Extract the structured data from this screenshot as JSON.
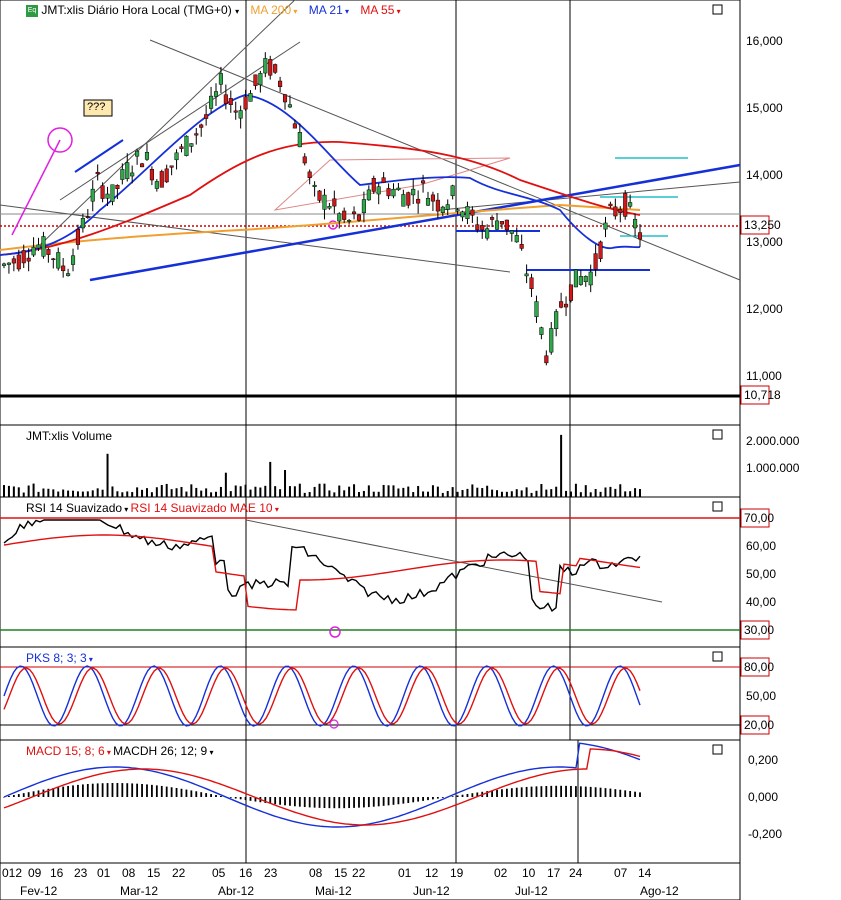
{
  "price_panel": {
    "title": "JMT:xlis Diário Hora Local (TMG+0)",
    "ma200_label": "MA 200",
    "ma21_label": "MA 21",
    "ma55_label": "MA 55",
    "annotation": "???",
    "last_price": "13,250",
    "hline_value": "10,718",
    "y_ticks": [
      "16,000",
      "15,000",
      "14,000",
      "13,000",
      "12,000",
      "11,000"
    ]
  },
  "volume_panel": {
    "title": "JMT:xlis Volume",
    "y_ticks": [
      "2.000.000",
      "1.000.000"
    ]
  },
  "rsi_panel": {
    "title": "RSI 14 Suavizado",
    "title2": "RSI 14 Suavizado MAE 10",
    "y_ticks": [
      "70,00",
      "60,00",
      "50,00",
      "40,00",
      "30,00"
    ]
  },
  "pks_panel": {
    "title": "PKS 8; 3; 3",
    "y_ticks": [
      "80,00",
      "50,00",
      "20,00"
    ]
  },
  "macd_panel": {
    "title": "MACD 15; 8; 6",
    "title2": "MACDH 26; 12; 9",
    "y_ticks": [
      "0,200",
      "0,000",
      "-0,200"
    ]
  },
  "x_axis": {
    "days": [
      "012",
      "09",
      "16",
      "23",
      "01",
      "08",
      "15",
      "22",
      "05",
      "16",
      "23",
      "08",
      "15",
      "22",
      "01",
      "12",
      "19",
      "02",
      "10",
      "17",
      "24",
      "07",
      "14"
    ],
    "months": [
      "Fev-12",
      "Mar-12",
      "Abr-12",
      "Mai-12",
      "Jun-12",
      "Jul-12",
      "Ago-12"
    ]
  },
  "chart_data": {
    "type": "line",
    "price_ylim": [
      10.5,
      16.5
    ],
    "price_approx_path": [
      12.8,
      12.9,
      13.1,
      13.0,
      12.7,
      13.3,
      14.0,
      13.8,
      14.2,
      14.4,
      14.0,
      14.3,
      14.6,
      14.9,
      15.4,
      15.0,
      15.3,
      15.7,
      15.4,
      14.7,
      13.8,
      13.7,
      13.4,
      13.5,
      14.0,
      13.9,
      13.8,
      13.9,
      13.7,
      13.8,
      13.5,
      13.3,
      13.5,
      13.2,
      12.5,
      11.5,
      12.3,
      12.6,
      12.7,
      13.5,
      13.7,
      13.25
    ],
    "volume_ticks": [
      "2.000.000",
      "1.000.000"
    ],
    "rsi_levels": [
      70,
      30
    ],
    "pks_levels": [
      80,
      20
    ],
    "last_price": 13.25,
    "support_line": 10.718
  }
}
